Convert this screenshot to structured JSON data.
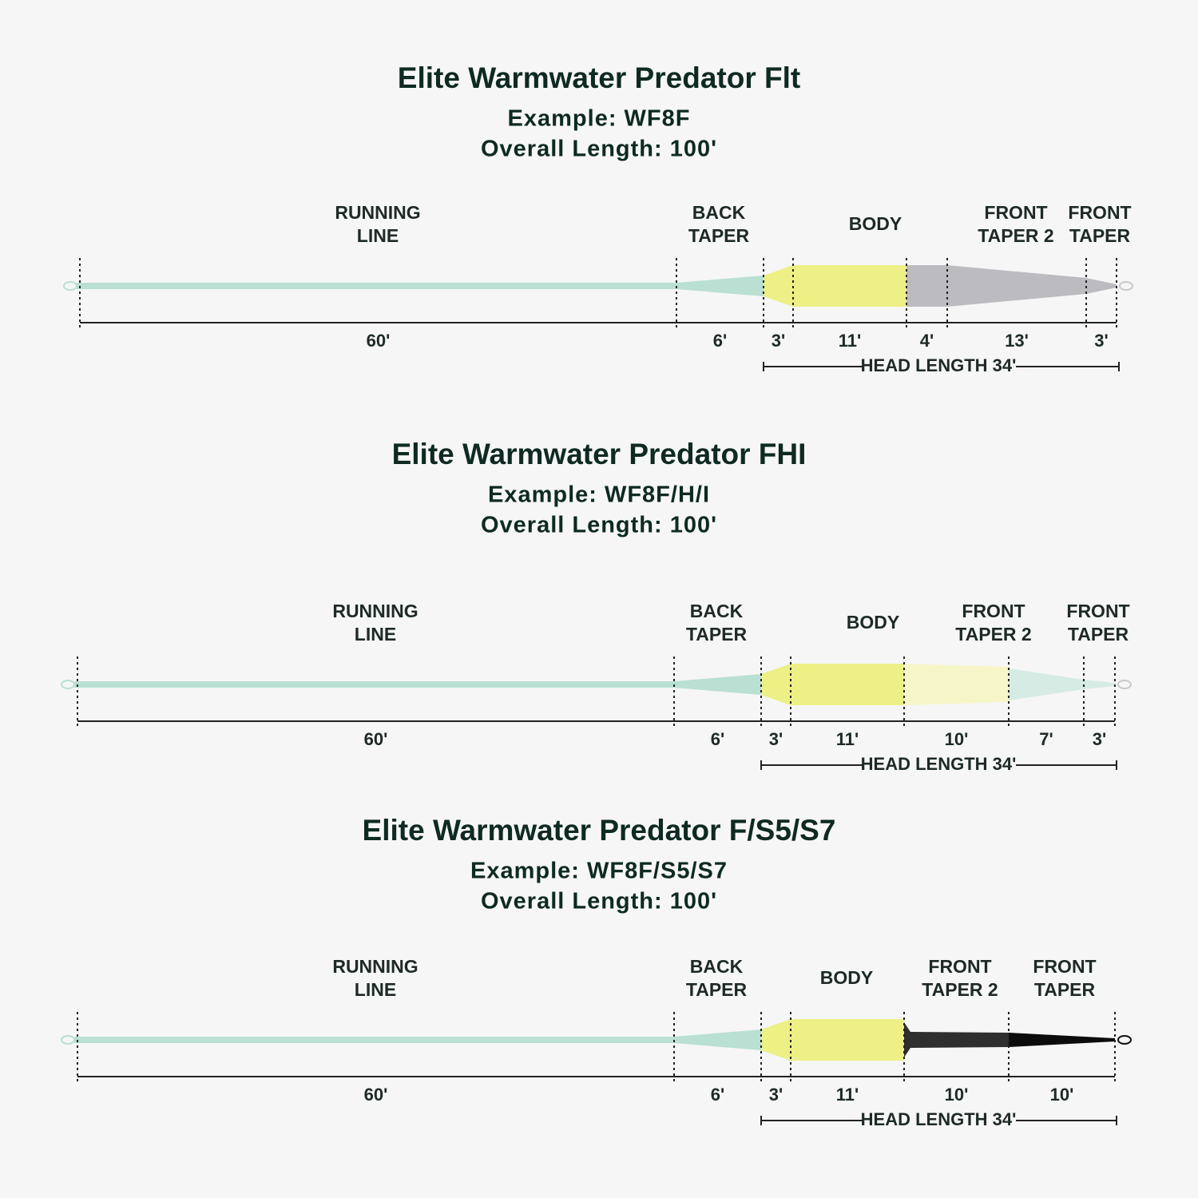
{
  "diagrams": [
    {
      "title": "Elite Warmwater Predator Flt",
      "example": "Example: WF8F",
      "overall_length": "Overall Length: 100'",
      "segments": [
        [
          "RUNNING",
          "LINE"
        ],
        [
          "BACK",
          "TAPER"
        ],
        [
          "BODY"
        ],
        [
          "FRONT",
          "TAPER 2"
        ],
        [
          "FRONT",
          "TAPER"
        ]
      ],
      "lengths": [
        "60'",
        "6'",
        "3'",
        "11'",
        "4'",
        "13'",
        "3'"
      ],
      "head_length": "HEAD LENGTH 34'"
    },
    {
      "title": "Elite Warmwater Predator FHI",
      "example": "Example: WF8F/H/I",
      "overall_length": "Overall Length: 100'",
      "segments": [
        [
          "RUNNING",
          "LINE"
        ],
        [
          "BACK",
          "TAPER"
        ],
        [
          "BODY"
        ],
        [
          "FRONT",
          "TAPER 2"
        ],
        [
          "FRONT",
          "TAPER"
        ]
      ],
      "lengths": [
        "60'",
        "6'",
        "3'",
        "11'",
        "10'",
        "7'",
        "3'"
      ],
      "head_length": "HEAD LENGTH 34'"
    },
    {
      "title": "Elite Warmwater Predator F/S5/S7",
      "example": "Example: WF8F/S5/S7",
      "overall_length": "Overall Length: 100'",
      "segments": [
        [
          "RUNNING",
          "LINE"
        ],
        [
          "BACK",
          "TAPER"
        ],
        [
          "BODY"
        ],
        [
          "FRONT",
          "TAPER 2"
        ],
        [
          "FRONT",
          "TAPER"
        ]
      ],
      "lengths": [
        "60'",
        "6'",
        "3'",
        "11'",
        "10'",
        "10'"
      ],
      "head_length": "HEAD LENGTH 34'"
    }
  ]
}
